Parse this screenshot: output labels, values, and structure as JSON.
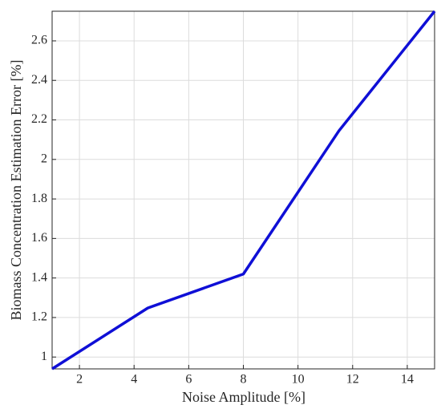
{
  "chart_data": {
    "type": "line",
    "xlabel": "Noise Amplitude [%]",
    "ylabel": "Biomass Concentration Estimation Error [%]",
    "x": [
      1,
      4.5,
      8,
      11.5,
      15
    ],
    "values": [
      0.94,
      1.248,
      1.42,
      2.145,
      2.75
    ],
    "color": "#0f0fd6",
    "xlim": [
      1,
      15
    ],
    "xticks": [
      2,
      4,
      6,
      8,
      10,
      12,
      14
    ],
    "ylim": [
      0.94,
      2.75
    ],
    "yticks": [
      1,
      1.2,
      1.4,
      1.6,
      1.8,
      2,
      2.2,
      2.4,
      2.6
    ],
    "grid": true
  }
}
